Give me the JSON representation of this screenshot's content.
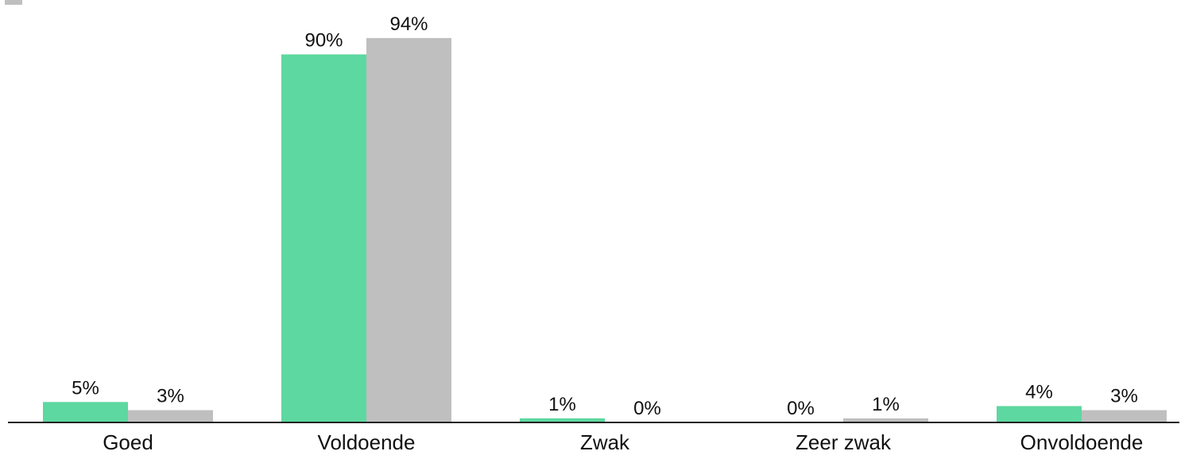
{
  "chart_data": {
    "type": "bar",
    "title": "",
    "xlabel": "",
    "ylabel": "",
    "ylim": [
      0,
      100
    ],
    "grid": false,
    "legend_position": "top-left",
    "categories": [
      "Goed",
      "Voldoende",
      "Zwak",
      "Zeer zwak",
      "Onvoldoende"
    ],
    "series": [
      {
        "color": "#5dd8a0",
        "values": [
          5,
          90,
          1,
          0,
          4
        ],
        "labels": [
          "5%",
          "90%",
          "1%",
          "0%",
          "4%"
        ]
      },
      {
        "name": "",
        "color": "#bfbfbf",
        "values": [
          3,
          94,
          0,
          1,
          3
        ],
        "labels": [
          "3%",
          "94%",
          "0%",
          "1%",
          "3%"
        ]
      }
    ]
  }
}
